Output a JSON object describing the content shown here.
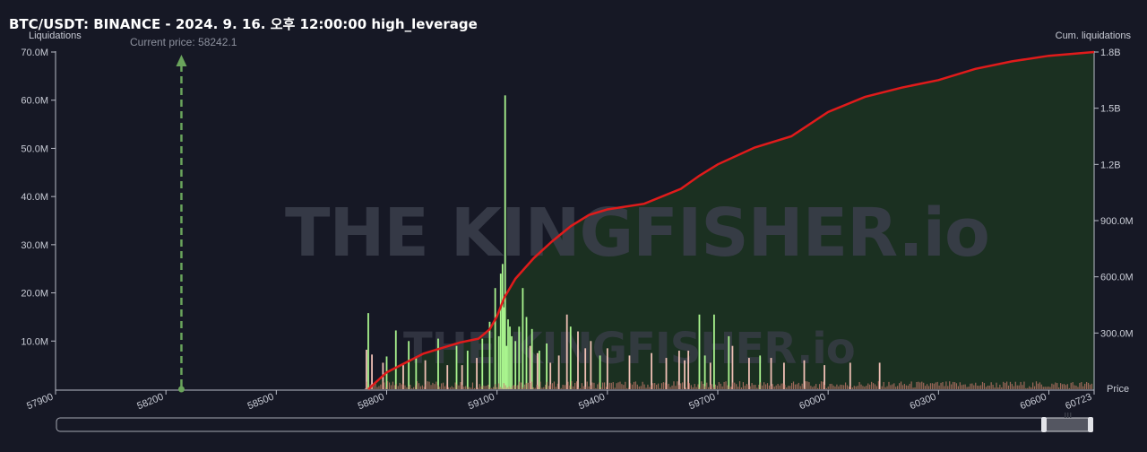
{
  "title": "BTC/USDT: BINANCE - 2024. 9. 16. 오후 12:00:00 high_leverage",
  "chart_data": {
    "type": "bar",
    "title": "BTC/USDT: BINANCE - 2024. 9. 16. 오후 12:00:00 high_leverage",
    "xlabel": "Price",
    "ylabel_left": "Liquidations",
    "ylabel_right": "Cum. liquidations",
    "xlim": [
      57900,
      60723
    ],
    "ylim_left": [
      0,
      70000000
    ],
    "ylim_right": [
      0,
      1800000000
    ],
    "x_ticks": [
      "57900",
      "58200",
      "58500",
      "58800",
      "59100",
      "59400",
      "59700",
      "60000",
      "60300",
      "60600",
      "60723"
    ],
    "y_ticks_left": [
      "10.0M",
      "20.0M",
      "30.0M",
      "40.0M",
      "50.0M",
      "60.0M",
      "70.0M"
    ],
    "y_ticks_right": [
      "300.0M",
      "600.0M",
      "900.0M",
      "1.2B",
      "1.5B",
      "1.8B"
    ],
    "current_price": 58242.1,
    "current_price_label": "Current price: 58242.1",
    "watermark": "THE KINGFISHER.io",
    "series": [
      {
        "type": "bar",
        "color": "#a9f48e",
        "x": [
          58750,
          58800,
          58825,
          58860,
          58880,
          58940,
          58990,
          59020,
          59060,
          59080,
          59095,
          59105,
          59110,
          59115,
          59118,
          59122,
          59126,
          59130,
          59135,
          59140,
          59150,
          59160,
          59170,
          59180,
          59195,
          59215,
          59235,
          59300,
          59380,
          59650,
          59665,
          59690,
          59730,
          59815
        ],
        "values": [
          15800000,
          6800000,
          12200000,
          10000000,
          6500000,
          10500000,
          9000000,
          8000000,
          10500000,
          14000000,
          21000000,
          11000000,
          24000000,
          26000000,
          17000000,
          61000000,
          9000000,
          14500000,
          13000000,
          11000000,
          10000000,
          13000000,
          21000000,
          15000000,
          12500000,
          8000000,
          9500000,
          13000000,
          7000000,
          15500000,
          7000000,
          15500000,
          11000000,
          7000000
        ]
      },
      {
        "type": "bar",
        "color": "#f0c0b5",
        "x": [
          58745,
          58760,
          58790,
          58845,
          58905,
          58965,
          59005,
          59045,
          59190,
          59210,
          59245,
          59268,
          59290,
          59320,
          59340,
          59355,
          59400,
          59460,
          59520,
          59560,
          59595,
          59610,
          59620,
          59680,
          59740,
          59785,
          59845,
          59880,
          59935,
          59990,
          60060,
          60140
        ],
        "values": [
          8200000,
          7200000,
          5500000,
          5000000,
          6000000,
          5000000,
          5000000,
          6500000,
          9000000,
          7500000,
          5500000,
          7000000,
          15500000,
          12000000,
          8500000,
          10000000,
          8500000,
          7000000,
          7500000,
          6500000,
          8000000,
          6000000,
          8000000,
          5500000,
          9000000,
          6500000,
          6500000,
          5500000,
          6000000,
          5000000,
          5500000,
          5500000
        ]
      },
      {
        "type": "line",
        "name": "Cum. liquidations",
        "color": "#e01b1b",
        "x": [
          58750,
          58800,
          58900,
          59000,
          59050,
          59080,
          59100,
          59120,
          59150,
          59200,
          59250,
          59300,
          59350,
          59400,
          59500,
          59600,
          59650,
          59700,
          59800,
          59900,
          60000,
          60100,
          60200,
          60300,
          60400,
          60500,
          60600,
          60723
        ],
        "values": [
          0,
          90000000,
          190000000,
          250000000,
          270000000,
          320000000,
          390000000,
          490000000,
          590000000,
          700000000,
          790000000,
          870000000,
          930000000,
          960000000,
          990000000,
          1070000000,
          1140000000,
          1200000000,
          1290000000,
          1350000000,
          1480000000,
          1560000000,
          1610000000,
          1650000000,
          1710000000,
          1750000000,
          1780000000,
          1800000000
        ]
      }
    ]
  }
}
